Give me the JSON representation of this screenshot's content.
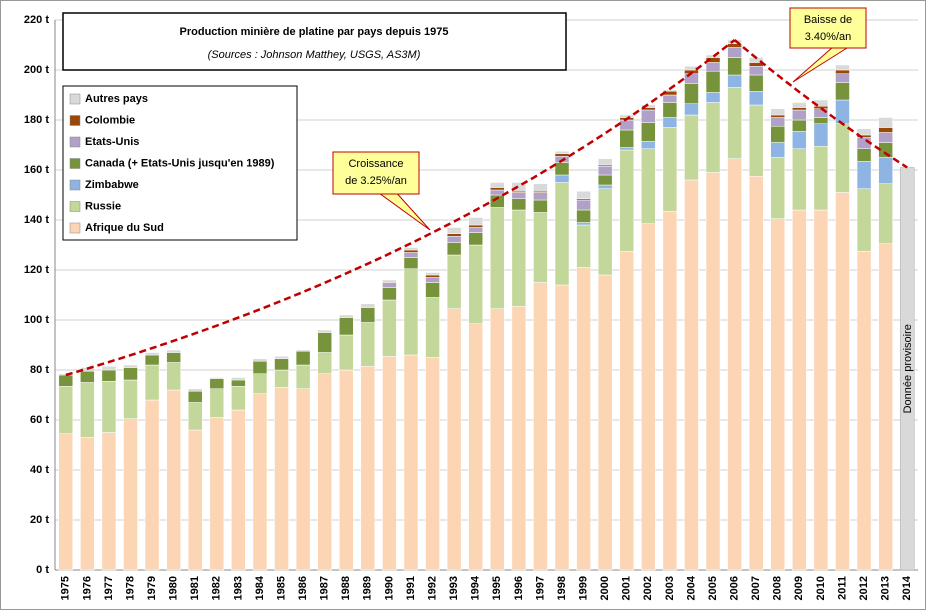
{
  "chart_data": {
    "type": "stacked_bar",
    "title": "Production minière de platine par pays depuis 1975",
    "subtitle": "(Sources : Johnson Matthey, USGS, AS3M)",
    "categories": [
      "1975",
      "1976",
      "1977",
      "1978",
      "1979",
      "1980",
      "1981",
      "1982",
      "1983",
      "1984",
      "1985",
      "1986",
      "1987",
      "1988",
      "1989",
      "1990",
      "1991",
      "1992",
      "1993",
      "1994",
      "1995",
      "1996",
      "1997",
      "1998",
      "1999",
      "2000",
      "2001",
      "2002",
      "2003",
      "2004",
      "2005",
      "2006",
      "2007",
      "2008",
      "2009",
      "2010",
      "2011",
      "2012",
      "2013",
      "2014"
    ],
    "series": [
      {
        "name": "Afrique du Sud",
        "color": "#fcd5b4",
        "values": [
          54.5,
          53,
          55,
          60.5,
          68,
          72,
          56,
          61,
          64,
          70.5,
          73,
          72.5,
          78.5,
          80,
          81.5,
          85.5,
          86,
          85,
          104.5,
          98.5,
          104.5,
          105.5,
          115,
          114,
          121,
          118,
          127.5,
          138.5,
          143.5,
          156,
          159,
          164.5,
          157.5,
          140.5,
          144,
          144,
          151,
          127.5,
          130.5,
          null
        ]
      },
      {
        "name": "Russie",
        "color": "#c4d79b",
        "values": [
          19,
          22,
          20.5,
          15.5,
          14,
          11,
          11,
          11.5,
          9.5,
          8,
          7,
          9.5,
          8.5,
          14,
          17.5,
          22.5,
          34.5,
          24,
          21.5,
          31.5,
          40.5,
          38.5,
          28,
          41,
          17,
          34.5,
          40.5,
          30,
          33.5,
          26,
          28,
          28.5,
          28.5,
          24.5,
          24.5,
          25.5,
          27.5,
          25,
          24,
          null
        ]
      },
      {
        "name": "Zimbabwe",
        "color": "#8db4e2",
        "values": [
          0,
          0,
          0,
          0,
          0,
          0,
          0,
          0,
          0,
          0,
          0,
          0,
          0,
          0,
          0,
          0,
          0,
          0,
          0,
          0,
          0,
          0,
          0,
          3,
          1,
          1.5,
          1,
          3,
          4,
          4.5,
          4,
          5,
          5.5,
          6,
          7,
          9,
          9.5,
          11,
          10.5,
          null
        ]
      },
      {
        "name": "Canada (+ Etats-Unis jusqu'en 1989)",
        "color": "#77933c",
        "values": [
          4.5,
          4.5,
          4.5,
          5,
          4,
          4,
          4.5,
          4,
          2.5,
          5,
          4.5,
          5.5,
          8,
          7,
          6,
          5,
          4.5,
          6,
          5,
          5,
          5,
          4.5,
          5,
          5,
          5,
          4,
          7,
          7.5,
          6,
          8,
          8.5,
          7,
          6.5,
          6.5,
          4.5,
          2.5,
          7,
          5,
          6,
          null
        ]
      },
      {
        "name": "Etats-Unis",
        "color": "#b1a0c7",
        "values": [
          0,
          0,
          0,
          0,
          0,
          0,
          0,
          0,
          0,
          0,
          0,
          0,
          0,
          0,
          0,
          1.5,
          2,
          2,
          2.5,
          2,
          2,
          2.5,
          3,
          2.5,
          4,
          3.5,
          4,
          5,
          3,
          4,
          3.5,
          4,
          3.5,
          3.5,
          4,
          3.5,
          3.5,
          4.5,
          4,
          null
        ]
      },
      {
        "name": "Colombie",
        "color": "#984807",
        "values": [
          0,
          0,
          0,
          0,
          0,
          0,
          0,
          0,
          0,
          0,
          0,
          0,
          0,
          0,
          0,
          0.5,
          1,
          1,
          1,
          1,
          1,
          0.5,
          0.5,
          1,
          0.5,
          0.5,
          1,
          1,
          1.5,
          1.5,
          2,
          1.5,
          1.5,
          1,
          1,
          1,
          1.5,
          1,
          2,
          null
        ]
      },
      {
        "name": "Autres pays",
        "color": "#d9d9d9",
        "values": [
          0.5,
          1.5,
          1.5,
          1,
          1,
          1,
          1,
          0.5,
          1,
          1,
          1,
          0.5,
          1,
          1,
          1.5,
          1,
          1,
          1,
          2.5,
          3,
          2,
          3.5,
          3,
          1,
          3,
          2.5,
          1,
          1,
          0.5,
          1.5,
          1,
          1.5,
          2,
          2.5,
          2,
          2.5,
          2,
          2.5,
          4,
          null
        ]
      }
    ],
    "provisional": {
      "label": "Donnée provisoire",
      "color": "#d9d9d9",
      "values": [
        null,
        null,
        null,
        null,
        null,
        null,
        null,
        null,
        null,
        null,
        null,
        null,
        null,
        null,
        null,
        null,
        null,
        null,
        null,
        null,
        null,
        null,
        null,
        null,
        null,
        null,
        null,
        null,
        null,
        null,
        null,
        null,
        null,
        null,
        null,
        null,
        null,
        null,
        null,
        161
      ]
    },
    "trends": [
      {
        "label_lines": [
          "Croissance",
          "de 3.25%/an"
        ],
        "color": "#c00000",
        "start": {
          "year": "1975",
          "value": 78
        },
        "end": {
          "year": "2006",
          "value": 212
        }
      },
      {
        "label_lines": [
          "Baisse de",
          "3.40%/an"
        ],
        "color": "#c00000",
        "start": {
          "year": "2006",
          "value": 212
        },
        "end": {
          "year": "2014",
          "value": 161
        }
      }
    ],
    "ylim": [
      0,
      220
    ],
    "yticks": [
      {
        "value": 0,
        "label": "0 t"
      },
      {
        "value": 20,
        "label": "20 t"
      },
      {
        "value": 40,
        "label": "40 t"
      },
      {
        "value": 60,
        "label": "60 t"
      },
      {
        "value": 80,
        "label": "80 t"
      },
      {
        "value": 100,
        "label": "100 t"
      },
      {
        "value": 120,
        "label": "120 t"
      },
      {
        "value": 140,
        "label": "140 t"
      },
      {
        "value": 160,
        "label": "160 t"
      },
      {
        "value": 180,
        "label": "180 t"
      },
      {
        "value": 200,
        "label": "200 t"
      },
      {
        "value": 220,
        "label": "220 t"
      }
    ],
    "grid": true,
    "legend": "upper left"
  }
}
